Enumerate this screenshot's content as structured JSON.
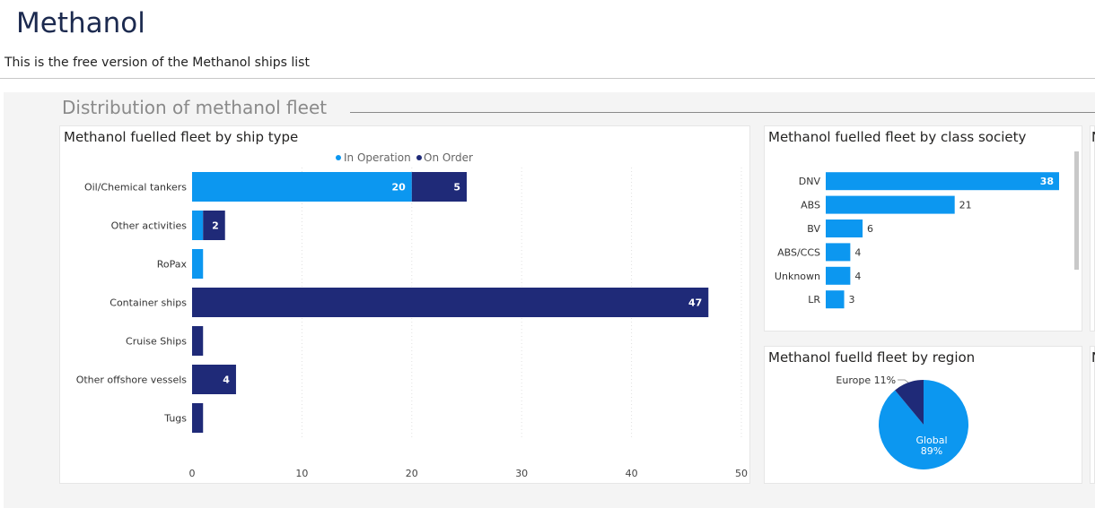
{
  "page": {
    "title": "Methanol",
    "subtitle": "This is the free version of the Methanol ships list",
    "section_title": "Distribution of methanol fleet"
  },
  "colors": {
    "in_operation": "#0c97f0",
    "on_order": "#1f2a78"
  },
  "chart_data": [
    {
      "type": "bar",
      "orientation": "horizontal",
      "stacked": true,
      "title": "Methanol fuelled fleet by ship type",
      "legend": {
        "position": "top-center",
        "entries": [
          "In Operation",
          "On Order"
        ]
      },
      "categories": [
        "Oil/Chemical tankers",
        "Other activities",
        "RoPax",
        "Container ships",
        "Cruise Ships",
        "Other offshore vessels",
        "Tugs"
      ],
      "series": [
        {
          "name": "In Operation",
          "values": [
            20,
            1,
            1,
            0,
            0,
            0,
            0
          ],
          "labels": [
            "20",
            "",
            "",
            "",
            "",
            "",
            ""
          ]
        },
        {
          "name": "On Order",
          "values": [
            5,
            2,
            0,
            47,
            1,
            4,
            1
          ],
          "labels": [
            "5",
            "2",
            "",
            "47",
            "",
            "4",
            ""
          ]
        }
      ],
      "xlim": [
        0,
        50
      ],
      "xticks": [
        "0",
        "10",
        "20",
        "30",
        "40",
        "50"
      ],
      "grid": "vertical-dotted"
    },
    {
      "type": "bar",
      "orientation": "horizontal",
      "title": "Methanol fuelled fleet by class society",
      "categories": [
        "DNV",
        "ABS",
        "BV",
        "ABS/CCS",
        "Unknown",
        "LR"
      ],
      "values": [
        38,
        21,
        6,
        4,
        4,
        3
      ],
      "labels": [
        "38",
        "21",
        "6",
        "4",
        "4",
        "3"
      ],
      "xlim": [
        0,
        38
      ]
    },
    {
      "type": "pie",
      "title": "Methanol fuelld fleet by region",
      "slices": [
        {
          "label": "Global",
          "value": 89,
          "text": "89%"
        },
        {
          "label": "Europe",
          "value": 11,
          "text": "Europe 11%"
        }
      ]
    }
  ],
  "edge_titles": [
    "N",
    "N"
  ]
}
